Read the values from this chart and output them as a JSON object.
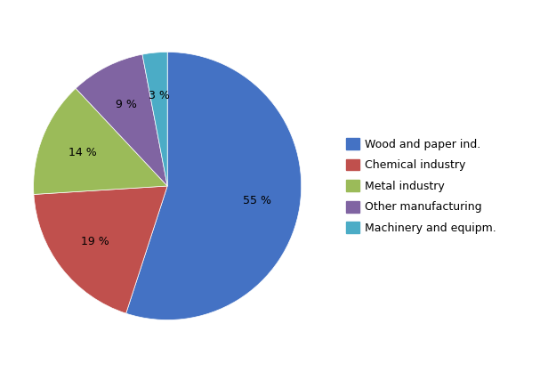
{
  "labels": [
    "Wood and paper ind.",
    "Chemical industry",
    "Metal industry",
    "Other manufacturing",
    "Machinery and equipm."
  ],
  "values": [
    55,
    19,
    14,
    9,
    3
  ],
  "colors": [
    "#4472C4",
    "#C0504D",
    "#9BBB59",
    "#8064A2",
    "#4BACC6"
  ],
  "autopct_labels": [
    "55 %",
    "19 %",
    "14 %",
    "9 %",
    "3 %"
  ],
  "background_color": "#ffffff",
  "startangle": 90,
  "figsize": [
    6.07,
    4.18
  ],
  "dpi": 100
}
